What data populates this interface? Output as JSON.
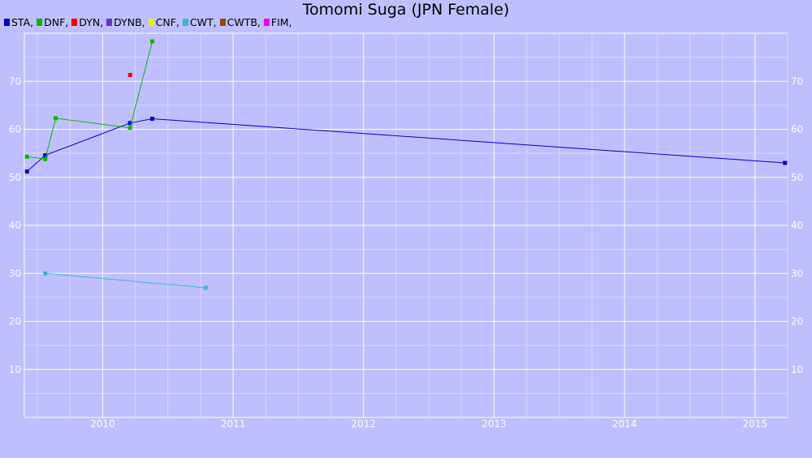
{
  "chart_data": {
    "type": "line",
    "title": "Tomomi Suga (JPN Female)",
    "xlabel": "",
    "ylabel": "",
    "xlim": [
      2009.4,
      2015.25
    ],
    "ylim": [
      0,
      80
    ],
    "x_ticks": [
      "2010",
      "2011",
      "2012",
      "2013",
      "2014",
      "2015"
    ],
    "y_ticks": [
      "10",
      "20",
      "30",
      "40",
      "50",
      "60",
      "70"
    ],
    "grid": true,
    "legend_position": "top-left",
    "legend": [
      {
        "label": "STA,",
        "color": "#0000cc"
      },
      {
        "label": "DNF,",
        "color": "#00bb00"
      },
      {
        "label": "DYN,",
        "color": "#ee0000"
      },
      {
        "label": "DYNB,",
        "color": "#6633cc"
      },
      {
        "label": "CNF,",
        "color": "#eeee00"
      },
      {
        "label": "CWT,",
        "color": "#33bbcc"
      },
      {
        "label": "CWTB,",
        "color": "#994400"
      },
      {
        "label": "FIM,",
        "color": "#ee00ee"
      }
    ],
    "series": [
      {
        "color": "#0000cc",
        "points": [
          [
            2009.42,
            51.2
          ],
          [
            2009.56,
            54.6
          ],
          [
            2010.21,
            61.3
          ],
          [
            2010.38,
            62.2
          ],
          [
            2015.23,
            53.0
          ]
        ]
      },
      {
        "color": "#00bb00",
        "points": [
          [
            2009.42,
            54.3
          ],
          [
            2009.56,
            53.8
          ],
          [
            2009.64,
            62.3
          ],
          [
            2010.21,
            60.3
          ],
          [
            2010.38,
            78.3
          ]
        ]
      },
      {
        "color": "#ee0000",
        "points": [
          [
            2010.21,
            71.3
          ]
        ]
      },
      {
        "color": "#33bbcc",
        "points": [
          [
            2009.56,
            30.0
          ],
          [
            2010.79,
            27.0
          ]
        ]
      }
    ]
  }
}
